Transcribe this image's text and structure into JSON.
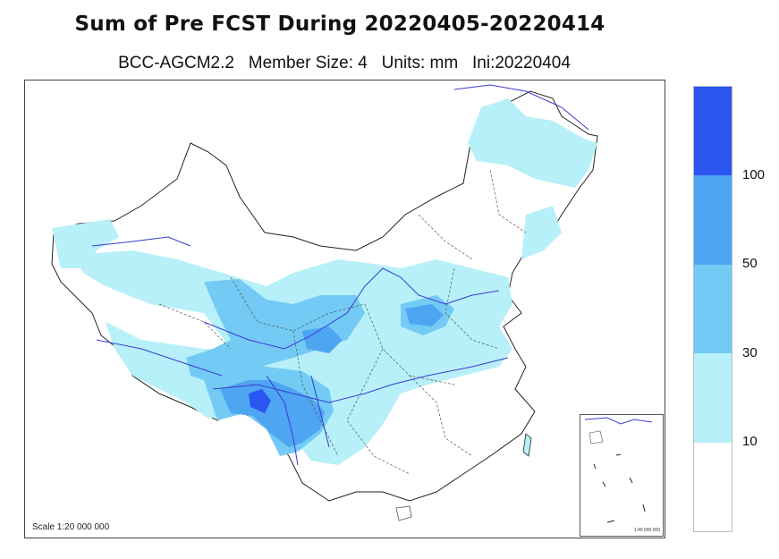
{
  "title": "Sum of Pre FCST During 20220405-20220414",
  "subtitle": "BCC-AGCM2.2   Member Size: 4   Units: mm   Ini:20220404",
  "map": {
    "scale_label": "Scale 1:20 000 000",
    "inset_scale_label": "1:40 000 000"
  },
  "legend": {
    "colors": [
      "#2a55f0",
      "#4ea5f2",
      "#73cbf5",
      "#b7f0f8",
      "#ffffff"
    ],
    "labels": [
      "100",
      "50",
      "30",
      "10"
    ]
  }
}
